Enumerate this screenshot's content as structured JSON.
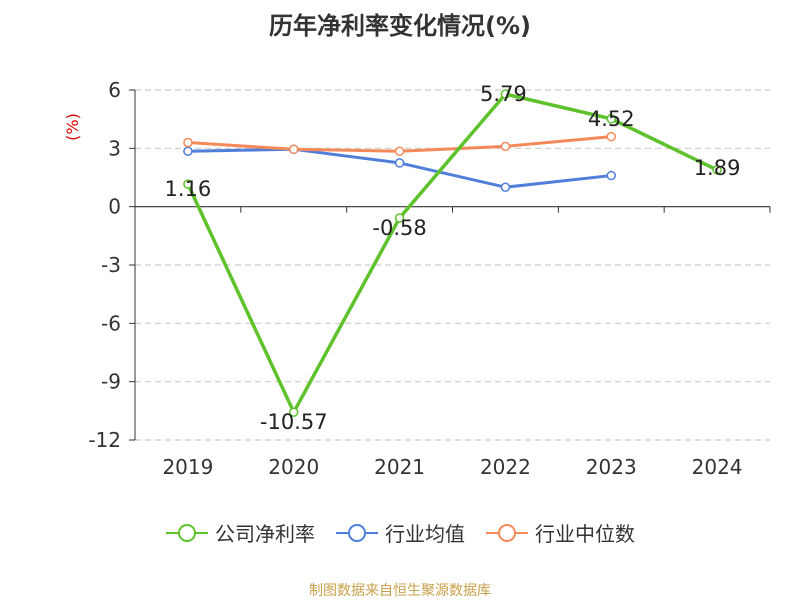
{
  "title": "历年净利率变化情况(%)",
  "footer": "制图数据来自恒生聚源数据库",
  "chart_data": {
    "type": "line",
    "title": "历年净利率变化情况(%)",
    "ylabel": "(%)",
    "ylim": [
      -12,
      6
    ],
    "yticks": [
      6,
      3,
      0,
      -3,
      -6,
      -9,
      -12
    ],
    "categories": [
      "2019",
      "2020",
      "2021",
      "2022",
      "2023",
      "2024"
    ],
    "grid": true,
    "legend_position": "bottom",
    "series": [
      {
        "name": "公司净利率",
        "color": "#5dc22b",
        "values": [
          1.16,
          -10.57,
          -0.58,
          5.79,
          4.52,
          1.89
        ],
        "labels": [
          "1.16",
          "-10.57",
          "-0.58",
          "5.79",
          "4.52",
          "1.89"
        ]
      },
      {
        "name": "行业均值",
        "color": "#4f7fd9",
        "values": [
          2.85,
          2.95,
          2.25,
          1.0,
          1.6,
          null
        ]
      },
      {
        "name": "行业中位数",
        "color": "#f48a5a",
        "values": [
          3.3,
          2.95,
          2.85,
          3.1,
          3.6,
          null
        ]
      }
    ]
  }
}
